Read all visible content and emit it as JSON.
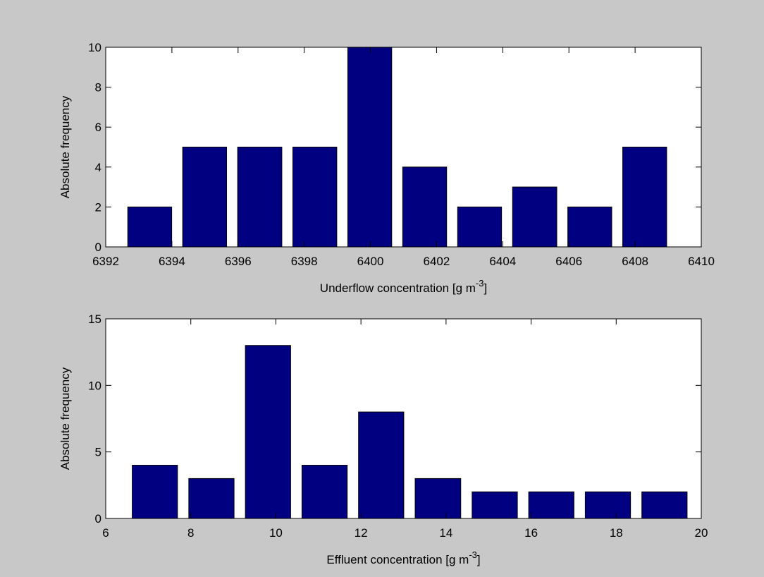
{
  "chart_data": [
    {
      "type": "histogram",
      "bins": [
        6392.5,
        6394.16,
        6395.82,
        6397.49,
        6399.15,
        6400.81,
        6402.47,
        6404.13,
        6405.8,
        6407.46,
        6409.12
      ],
      "values": [
        2,
        5,
        5,
        5,
        10,
        4,
        2,
        3,
        2,
        5
      ],
      "color": "#000080",
      "xlim": [
        6392,
        6410
      ],
      "xticks": [
        6392,
        6394,
        6396,
        6398,
        6400,
        6402,
        6404,
        6406,
        6408,
        6410
      ],
      "ylim": [
        0,
        10
      ],
      "yticks": [
        0,
        2,
        4,
        6,
        8,
        10
      ],
      "xlabel": [
        "Underflow concentration  [g m",
        "-3",
        "]"
      ],
      "ylabel": "Absolute frequency",
      "grid": false
    },
    {
      "type": "histogram",
      "bins": [
        6.49,
        7.82,
        9.15,
        10.48,
        11.81,
        13.14,
        14.48,
        15.81,
        17.14,
        18.47,
        19.8
      ],
      "values": [
        4,
        3,
        13,
        4,
        8,
        3,
        2,
        2,
        2,
        2
      ],
      "color": "#000080",
      "xlim": [
        6,
        20
      ],
      "xticks": [
        6,
        8,
        10,
        12,
        14,
        16,
        18,
        20
      ],
      "ylim": [
        0,
        15
      ],
      "yticks": [
        0,
        5,
        10,
        15
      ],
      "xlabel": [
        "Effluent concentration  [g m",
        "-3",
        "]"
      ],
      "ylabel": "Absolute frequency",
      "grid": false
    }
  ]
}
